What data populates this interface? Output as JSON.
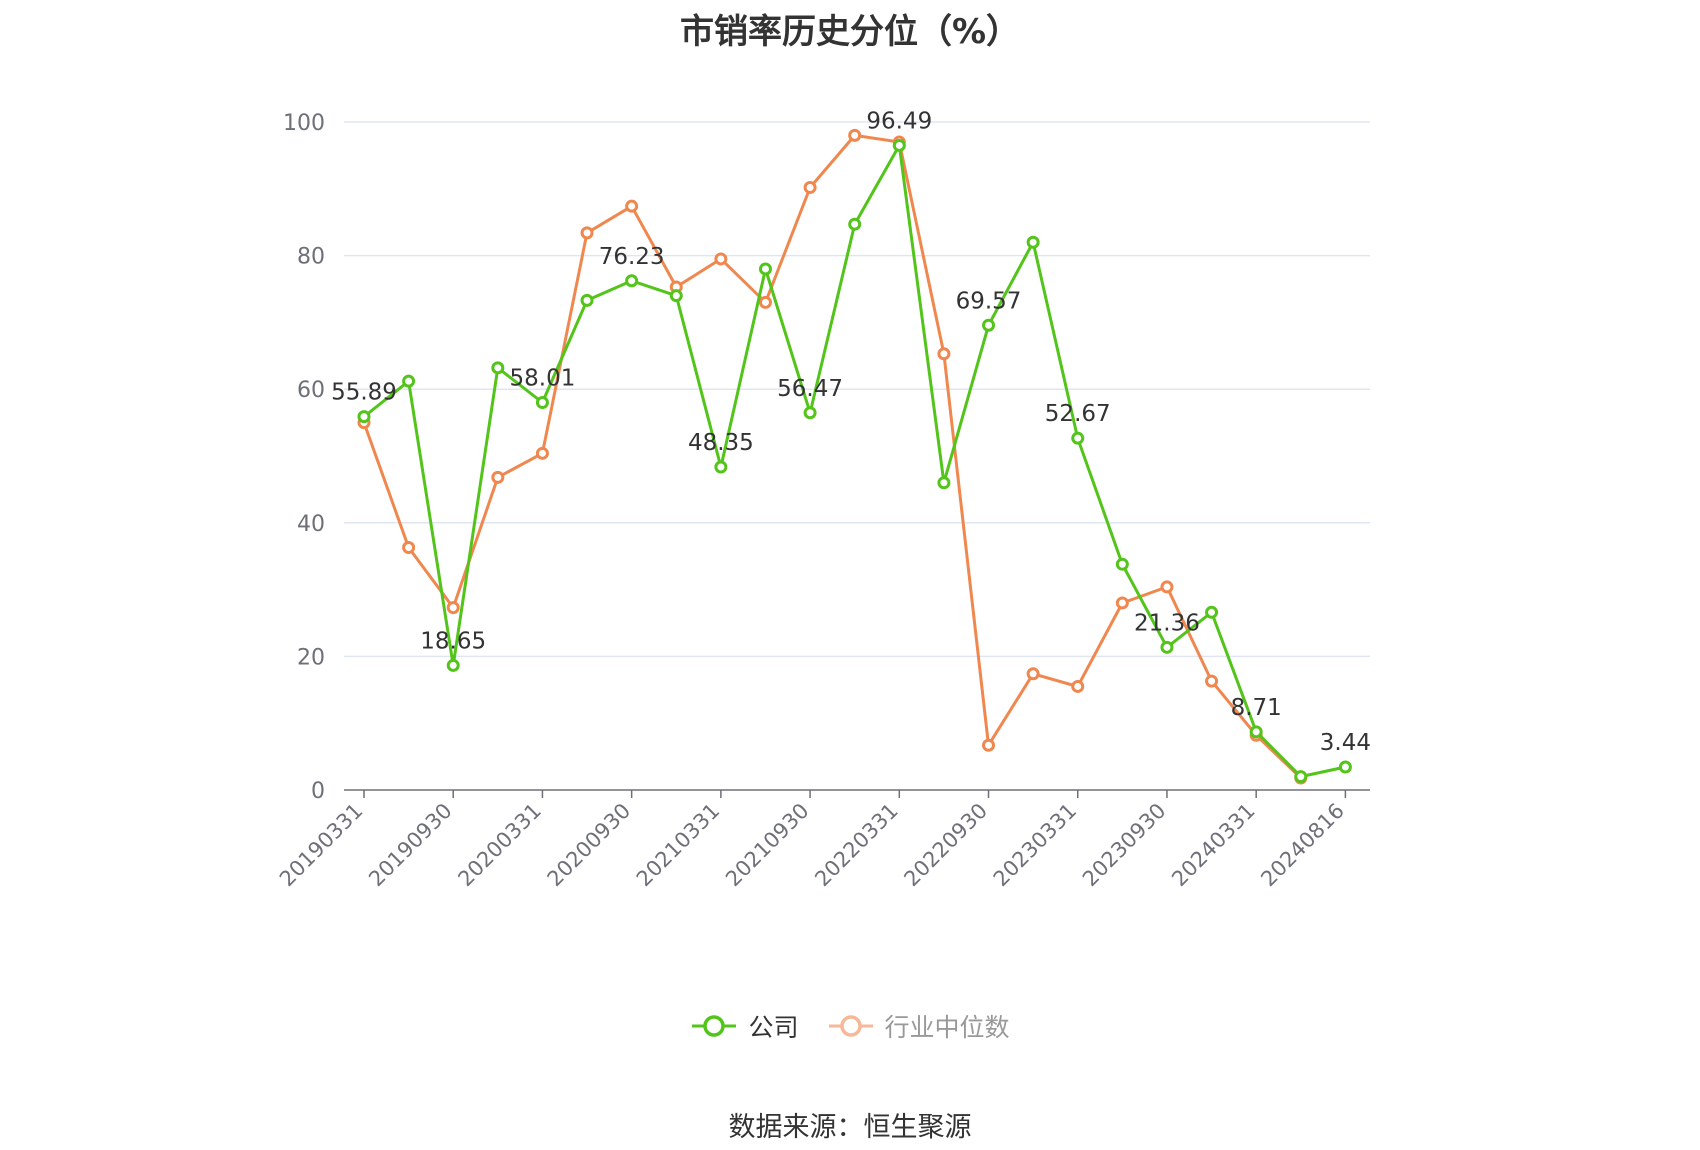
{
  "chart_data": {
    "type": "line",
    "title": "市销率历史分位（%）",
    "ylim": [
      0,
      100
    ],
    "yticks": [
      0,
      20,
      40,
      60,
      80,
      100
    ],
    "x": [
      "20190331",
      "20190630",
      "20190930",
      "20191231",
      "20200331",
      "20200630",
      "20200930",
      "20201231",
      "20210331",
      "20210630",
      "20210930",
      "20211231",
      "20220331",
      "20220630",
      "20220930",
      "20221231",
      "20230331",
      "20230630",
      "20230930",
      "20231231",
      "20240331",
      "20240630",
      "20240816"
    ],
    "xtick_labels": [
      "20190331",
      "20190930",
      "20200331",
      "20200930",
      "20210331",
      "20210930",
      "20220331",
      "20220930",
      "20230331",
      "20230930",
      "20240331",
      "20240816"
    ],
    "series": [
      {
        "name": "公司",
        "color": "#52c41a",
        "values": [
          55.89,
          61.2,
          18.65,
          63.2,
          58.01,
          73.3,
          76.23,
          74.0,
          48.35,
          78.0,
          56.47,
          84.7,
          96.49,
          46.0,
          69.57,
          82.0,
          52.67,
          33.8,
          21.36,
          26.6,
          8.71,
          2.0,
          3.44
        ],
        "data_labels": {
          "0": "55.89",
          "2": "18.65",
          "4": "58.01",
          "6": "76.23",
          "8": "48.35",
          "10": "56.47",
          "12": "96.49",
          "14": "69.57",
          "16": "52.67",
          "18": "21.36",
          "20": "8.71",
          "22": "3.44"
        }
      },
      {
        "name": "行业中位数",
        "color": "#f0874e",
        "values": [
          55.0,
          36.3,
          27.3,
          46.8,
          50.4,
          83.4,
          87.4,
          75.3,
          79.5,
          73.0,
          90.2,
          98.0,
          97.0,
          65.3,
          6.7,
          17.4,
          15.5,
          28.0,
          30.4,
          16.3,
          8.2,
          1.8,
          null
        ]
      }
    ],
    "grid": true,
    "legend_position": "bottom-center"
  },
  "legend": {
    "company": "公司",
    "industry": "行业中位数"
  },
  "source": "数据来源：恒生聚源"
}
